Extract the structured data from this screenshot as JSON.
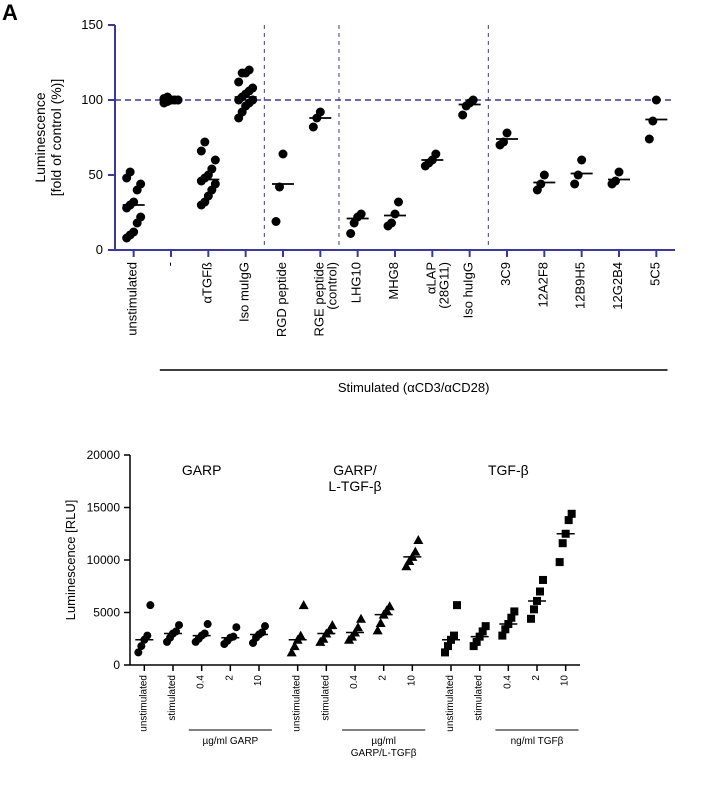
{
  "panel_label": "A",
  "chart_a": {
    "type": "scatter-categorical",
    "ylim": [
      0,
      150
    ],
    "yticks": [
      0,
      50,
      100,
      150
    ],
    "ylabel_line1": "Luminescence",
    "ylabel_line2": "[fold of control (%)]",
    "axis_color": "#3a3a9e",
    "marker_color": "#000000",
    "background_color": "#ffffff",
    "ref_line_y": 100,
    "dividers_after_idx": [
      3,
      5,
      9
    ],
    "categories": [
      "unstimulated",
      "-",
      "αTGFß",
      "Iso muIgG",
      "RGD peptide",
      "RGE peptide (control)",
      "LHG10",
      "MHG8",
      "αLAP (28G11)",
      "Iso huIgG",
      "3C9",
      "12A2F8",
      "12B9H5",
      "12G2B4",
      "5C5"
    ],
    "values": [
      [
        8,
        10,
        12,
        18,
        22,
        28,
        30,
        32,
        40,
        44,
        48,
        52
      ],
      [
        98,
        99,
        100,
        100,
        100,
        100,
        100,
        100,
        100,
        100,
        101,
        102
      ],
      [
        30,
        32,
        36,
        40,
        44,
        46,
        48,
        50,
        54,
        60,
        66,
        72
      ],
      [
        88,
        92,
        96,
        98,
        100,
        100,
        102,
        104,
        106,
        108,
        112,
        118,
        118,
        120
      ],
      [
        19,
        42,
        64
      ],
      [
        82,
        88,
        92
      ],
      [
        11,
        18,
        22,
        24
      ],
      [
        16,
        18,
        24,
        32
      ],
      [
        56,
        58,
        60,
        64
      ],
      [
        90,
        96,
        98,
        100
      ],
      [
        70,
        72,
        78
      ],
      [
        40,
        44,
        50
      ],
      [
        44,
        50,
        60
      ],
      [
        44,
        46,
        52
      ],
      [
        74,
        86,
        100
      ]
    ],
    "medians": [
      30,
      100,
      47,
      102,
      44,
      88,
      21,
      23,
      60,
      97,
      74,
      45,
      51,
      47,
      87
    ],
    "stim_label": "Stimulated (αCD3/αCD28)"
  },
  "chart_b": {
    "type": "scatter-categorical",
    "ylim": [
      0,
      20000
    ],
    "yticks": [
      0,
      5000,
      10000,
      15000,
      20000
    ],
    "ylabel": "Luminescence [RLU]",
    "axis_color": "#000000",
    "marker_color": "#000000",
    "background_color": "#ffffff",
    "groups": [
      {
        "label": "GARP",
        "sublabel": "µg/ml GARP",
        "n": 5,
        "marker": "circle"
      },
      {
        "label_line1": "GARP/",
        "label_line2": "L-TGF-β",
        "sublabel": "µg/ml\nGARP/L-TGFβ",
        "n": 5,
        "marker": "triangle"
      },
      {
        "label": "TGF-β",
        "sublabel": "ng/ml TGFβ",
        "n": 5,
        "marker": "square"
      }
    ],
    "categories_per_group": [
      "unstimulated",
      "stimulated",
      "0.4",
      "2",
      "10"
    ],
    "values": [
      [
        1200,
        1800,
        2400,
        2800,
        5700
      ],
      [
        2200,
        2600,
        3000,
        3200,
        3800
      ],
      [
        2200,
        2500,
        2800,
        3000,
        3900
      ],
      [
        2000,
        2300,
        2600,
        2700,
        3600
      ],
      [
        2100,
        2600,
        2900,
        3100,
        3700
      ],
      [
        1200,
        1800,
        2400,
        2800,
        5700
      ],
      [
        2200,
        2500,
        3000,
        3300,
        3800
      ],
      [
        2400,
        2700,
        3100,
        3600,
        4400
      ],
      [
        3300,
        4000,
        4800,
        5200,
        5600
      ],
      [
        9400,
        9900,
        10300,
        10800,
        11900
      ],
      [
        1200,
        1800,
        2400,
        2800,
        5700
      ],
      [
        1800,
        2200,
        2700,
        3200,
        3700
      ],
      [
        2800,
        3400,
        3900,
        4500,
        5100
      ],
      [
        4400,
        5300,
        6100,
        7000,
        8100
      ],
      [
        9800,
        11600,
        12500,
        13800,
        14400
      ]
    ],
    "medians": [
      2400,
      3000,
      2800,
      2600,
      2900,
      2400,
      3000,
      3100,
      4800,
      10300,
      2400,
      2700,
      3900,
      6100,
      12500
    ]
  }
}
